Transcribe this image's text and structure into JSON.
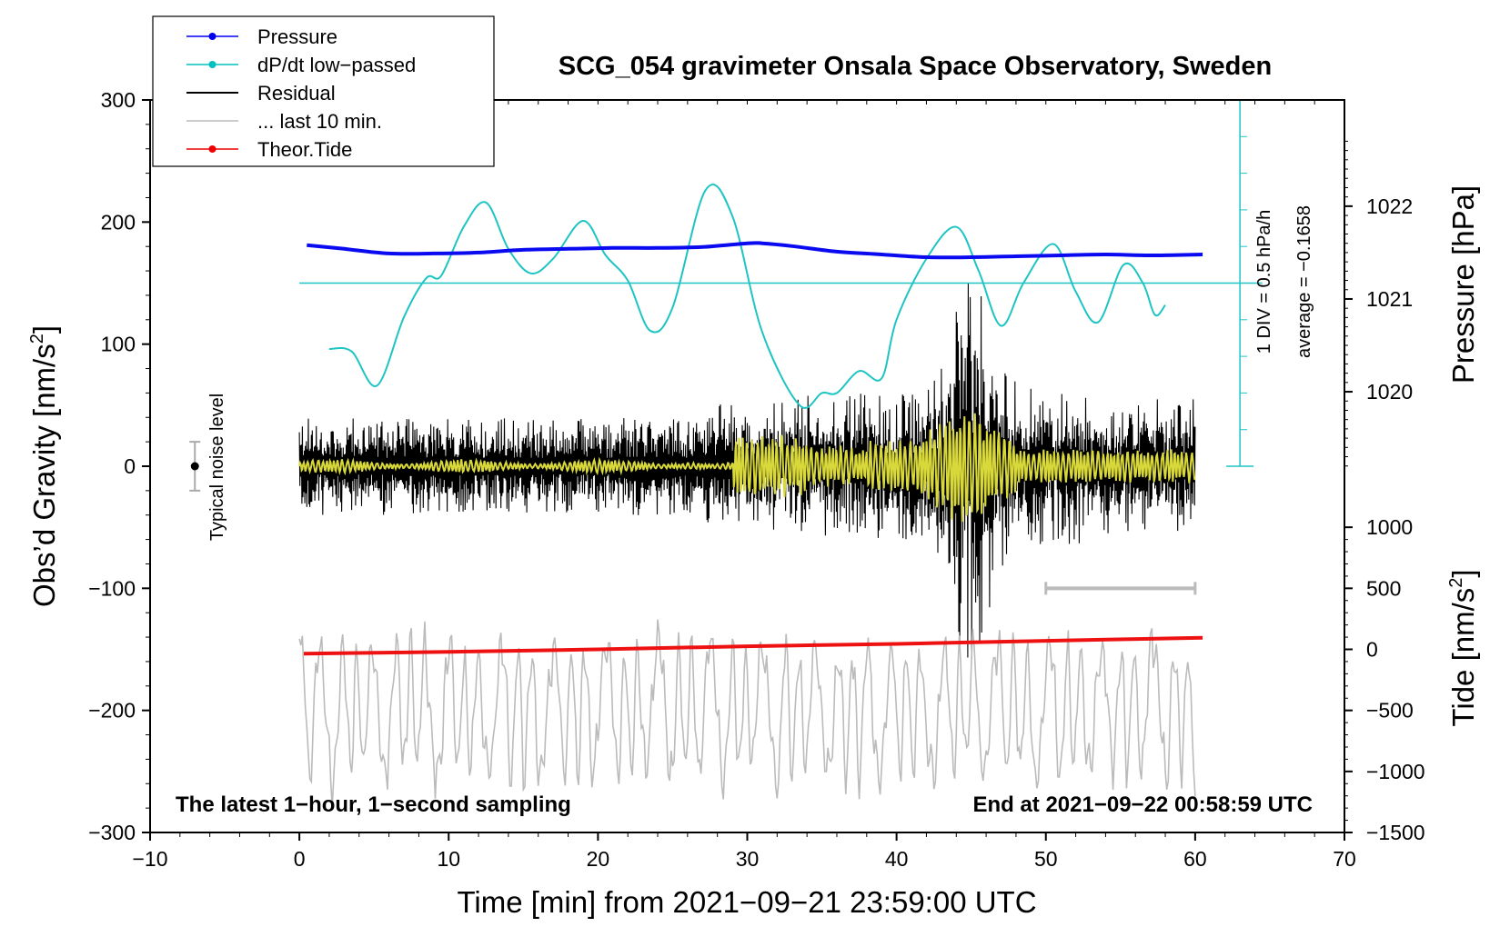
{
  "chart_data": {
    "type": "line",
    "title": "SCG_054 gravimeter Onsala Space Observatory, Sweden",
    "xlabel": "Time [min] from 2021−09−21 23:59:00 UTC",
    "ylabel_main": "Obs’d Gravity [nm/s",
    "ylabel_main_sup": "2",
    "ylabel_main_close": "]",
    "ylabel_pressure": "Pressure [hPa]",
    "ylabel_tide": "Tide [nm/s",
    "ylabel_tide_sup": "2",
    "ylabel_tide_close": "]",
    "xlim": [
      -10,
      70
    ],
    "ylim": [
      -300,
      300
    ],
    "x_ticks": [
      -10,
      0,
      10,
      20,
      30,
      40,
      50,
      60,
      70
    ],
    "x_tick_labels": [
      "−10",
      "0",
      "10",
      "20",
      "30",
      "40",
      "50",
      "60",
      "70"
    ],
    "y_ticks": [
      300,
      200,
      100,
      0,
      -100,
      -200,
      -300
    ],
    "y_tick_labels": [
      "300",
      "200",
      "100",
      "0",
      "−100",
      "−200",
      "−300"
    ],
    "pressure_ticks": [
      1022,
      1021,
      1020
    ],
    "pressure_tick_labels": [
      "1022",
      "1021",
      "1020"
    ],
    "tide_ticks": [
      1000,
      500,
      0,
      -500,
      -1000,
      -1500
    ],
    "tide_tick_labels": [
      "1000",
      "500",
      "0",
      "−500",
      "−1000",
      "−1500"
    ],
    "footer_left": "The latest 1−hour, 1−second sampling",
    "footer_right": "End at 2021−09−22 00:58:59 UTC",
    "noise_label": "Typical noise level",
    "scale_label_1": "1 DIV = 0.5 hPa/h",
    "scale_label_2": "average = −0.1658",
    "legend": [
      {
        "label": "Pressure",
        "color": "#0000ee",
        "marker": true
      },
      {
        "label": "dP/dt low−passed",
        "color": "#00c0c0",
        "marker": true
      },
      {
        "label": "Residual",
        "color": "#000000",
        "marker": false
      },
      {
        "label": "... last 10 min.",
        "color": "#bbbbbb",
        "marker": false
      },
      {
        "label": "Theor.Tide",
        "color": "#ee0000",
        "marker": true
      }
    ],
    "colors": {
      "pressure": "#0a0af0",
      "dpdt": "#1ec4c4",
      "residual": "#000000",
      "residual_filtered": "#d8d83a",
      "last10": "#bbbbbb",
      "tide": "#ee1111"
    },
    "series": [
      {
        "name": "Pressure",
        "axis": "pressure_hPa",
        "x": [
          0.5,
          3,
          6,
          9,
          12,
          15,
          18,
          21,
          24,
          27,
          30,
          31,
          33,
          36,
          39,
          42,
          45,
          48,
          51,
          54,
          57,
          60.5
        ],
        "values": [
          1021.58,
          1021.54,
          1021.49,
          1021.49,
          1021.5,
          1021.53,
          1021.54,
          1021.55,
          1021.55,
          1021.56,
          1021.6,
          1021.6,
          1021.57,
          1021.51,
          1021.48,
          1021.45,
          1021.45,
          1021.46,
          1021.47,
          1021.48,
          1021.47,
          1021.48
        ]
      },
      {
        "name": "dP/dt low-passed",
        "axis": "gravity_nm_s2",
        "x": [
          2,
          3.5,
          5.2,
          7,
          8.5,
          9.5,
          11,
          12.5,
          14,
          15.5,
          17,
          19,
          20.5,
          22,
          23.5,
          25,
          27.2,
          29,
          31,
          33.5,
          35,
          36,
          37.5,
          39,
          40,
          42,
          44,
          45.5,
          47,
          48.5,
          50.5,
          52,
          53.5,
          55.2,
          56.5,
          57.3,
          58
        ],
        "values": [
          96,
          94,
          66,
          122,
          154,
          156,
          196,
          216,
          178,
          158,
          170,
          201,
          173,
          152,
          111,
          130,
          226,
          205,
          110,
          50,
          60,
          60,
          78,
          72,
          120,
          170,
          196,
          160,
          115,
          150,
          182,
          143,
          118,
          165,
          150,
          124,
          132
        ]
      },
      {
        "name": "Theor.Tide",
        "axis": "tide_nm_s2",
        "x": [
          0.3,
          10,
          20,
          30,
          40,
          50,
          60.5
        ],
        "values": [
          -35,
          -20,
          0,
          25,
          45,
          70,
          95
        ]
      }
    ],
    "reference_line_gravity": 150,
    "noise_level_gravity": [
      20,
      -20
    ],
    "residual_x_range": [
      0,
      60
    ],
    "last10_range_min": [
      50,
      60
    ],
    "last10_marker_gravity": -100
  }
}
